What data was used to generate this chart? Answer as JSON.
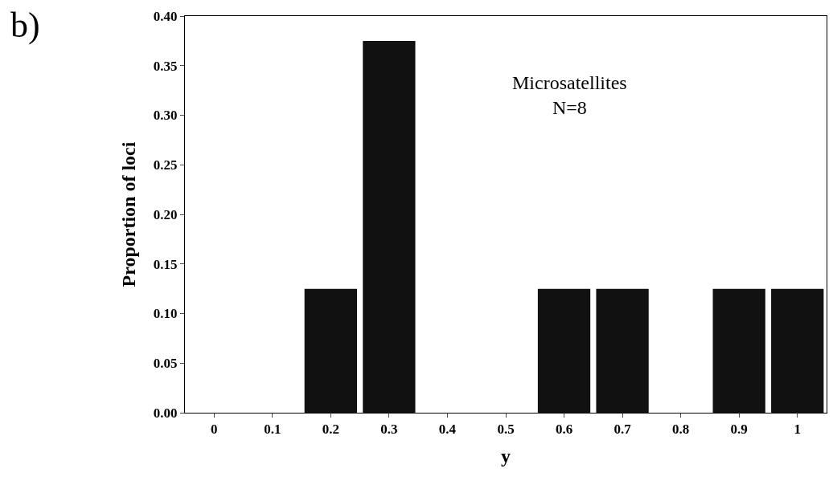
{
  "chart_data": {
    "type": "bar",
    "xlabel": "y",
    "ylabel": "Proportion of loci",
    "categories": [
      "0",
      "0.1",
      "0.2",
      "0.3",
      "0.4",
      "0.5",
      "0.6",
      "0.7",
      "0.8",
      "0.9",
      "1"
    ],
    "values": [
      0,
      0,
      0.125,
      0.375,
      0,
      0,
      0.125,
      0.125,
      0,
      0.125,
      0.125
    ],
    "color": "#111111",
    "ylim": [
      0,
      0.4
    ],
    "yticks": [
      {
        "value": 0,
        "label": "0.00"
      },
      {
        "value": 0.05,
        "label": "0.05"
      },
      {
        "value": 0.1,
        "label": "0.10"
      },
      {
        "value": 0.15,
        "label": "0.15"
      },
      {
        "value": 0.2,
        "label": "0.20"
      },
      {
        "value": 0.25,
        "label": "0.25"
      },
      {
        "value": 0.3,
        "label": "0.30"
      },
      {
        "value": 0.35,
        "label": "0.35"
      },
      {
        "value": 0.4,
        "label": "0.40"
      }
    ],
    "annotations": [
      "b)",
      "Microsatellites\nN=8"
    ]
  }
}
